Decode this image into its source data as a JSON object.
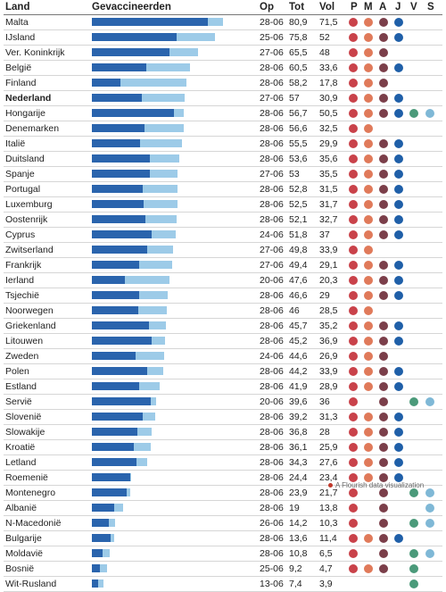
{
  "headers": {
    "land": "Land",
    "gevaccineerden": "Gevaccineerden",
    "op": "Op",
    "tot": "Tot",
    "vol": "Vol",
    "p": "P",
    "m": "M",
    "a": "A",
    "j": "J",
    "v": "V",
    "s": "S"
  },
  "colors": {
    "P": "#c9424a",
    "M": "#e07a5a",
    "A": "#7b3f4a",
    "J": "#1f5fa8",
    "V": "#4b9a7a",
    "S": "#7fb8d6",
    "bar_tot": "#9dcbe8",
    "bar_vol": "#2a64ad"
  },
  "footer": "A Flourish data visualization",
  "chart_data": {
    "type": "table",
    "bar_max": 100,
    "columns": [
      "Land",
      "Gevaccineerden",
      "Op",
      "Tot",
      "Vol",
      "P",
      "M",
      "A",
      "J",
      "V",
      "S"
    ],
    "rows": [
      {
        "land": "Malta",
        "op": "28-06",
        "tot": "80,9",
        "vol": "71,5",
        "tv": 80.9,
        "vv": 71.5,
        "p": true,
        "m": true,
        "a": true,
        "j": true,
        "v": false,
        "s": false
      },
      {
        "land": "IJsland",
        "op": "25-06",
        "tot": "75,8",
        "vol": "52",
        "tv": 75.8,
        "vv": 52,
        "p": true,
        "m": true,
        "a": true,
        "j": true,
        "v": false,
        "s": false
      },
      {
        "land": "Ver. Koninkrijk",
        "op": "27-06",
        "tot": "65,5",
        "vol": "48",
        "tv": 65.5,
        "vv": 48,
        "p": true,
        "m": true,
        "a": true,
        "j": false,
        "v": false,
        "s": false
      },
      {
        "land": "België",
        "op": "28-06",
        "tot": "60,5",
        "vol": "33,6",
        "tv": 60.5,
        "vv": 33.6,
        "p": true,
        "m": true,
        "a": true,
        "j": true,
        "v": false,
        "s": false
      },
      {
        "land": "Finland",
        "op": "28-06",
        "tot": "58,2",
        "vol": "17,8",
        "tv": 58.2,
        "vv": 17.8,
        "p": true,
        "m": true,
        "a": true,
        "j": false,
        "v": false,
        "s": false
      },
      {
        "land": "Nederland",
        "op": "27-06",
        "tot": "57",
        "vol": "30,9",
        "tv": 57,
        "vv": 30.9,
        "p": true,
        "m": true,
        "a": true,
        "j": true,
        "v": false,
        "s": false,
        "bold": true
      },
      {
        "land": "Hongarije",
        "op": "28-06",
        "tot": "56,7",
        "vol": "50,5",
        "tv": 56.7,
        "vv": 50.5,
        "p": true,
        "m": true,
        "a": true,
        "j": true,
        "v": true,
        "s": true
      },
      {
        "land": "Denemarken",
        "op": "28-06",
        "tot": "56,6",
        "vol": "32,5",
        "tv": 56.6,
        "vv": 32.5,
        "p": true,
        "m": true,
        "a": false,
        "j": false,
        "v": false,
        "s": false
      },
      {
        "land": "Italië",
        "op": "28-06",
        "tot": "55,5",
        "vol": "29,9",
        "tv": 55.5,
        "vv": 29.9,
        "p": true,
        "m": true,
        "a": true,
        "j": true,
        "v": false,
        "s": false
      },
      {
        "land": "Duitsland",
        "op": "28-06",
        "tot": "53,6",
        "vol": "35,6",
        "tv": 53.6,
        "vv": 35.6,
        "p": true,
        "m": true,
        "a": true,
        "j": true,
        "v": false,
        "s": false
      },
      {
        "land": "Spanje",
        "op": "27-06",
        "tot": "53",
        "vol": "35,5",
        "tv": 53,
        "vv": 35.5,
        "p": true,
        "m": true,
        "a": true,
        "j": true,
        "v": false,
        "s": false
      },
      {
        "land": "Portugal",
        "op": "28-06",
        "tot": "52,8",
        "vol": "31,5",
        "tv": 52.8,
        "vv": 31.5,
        "p": true,
        "m": true,
        "a": true,
        "j": true,
        "v": false,
        "s": false
      },
      {
        "land": "Luxemburg",
        "op": "28-06",
        "tot": "52,5",
        "vol": "31,7",
        "tv": 52.5,
        "vv": 31.7,
        "p": true,
        "m": true,
        "a": true,
        "j": true,
        "v": false,
        "s": false
      },
      {
        "land": "Oostenrijk",
        "op": "28-06",
        "tot": "52,1",
        "vol": "32,7",
        "tv": 52.1,
        "vv": 32.7,
        "p": true,
        "m": true,
        "a": true,
        "j": true,
        "v": false,
        "s": false
      },
      {
        "land": "Cyprus",
        "op": "24-06",
        "tot": "51,8",
        "vol": "37",
        "tv": 51.8,
        "vv": 37,
        "p": true,
        "m": true,
        "a": true,
        "j": true,
        "v": false,
        "s": false
      },
      {
        "land": "Zwitserland",
        "op": "27-06",
        "tot": "49,8",
        "vol": "33,9",
        "tv": 49.8,
        "vv": 33.9,
        "p": true,
        "m": true,
        "a": false,
        "j": false,
        "v": false,
        "s": false
      },
      {
        "land": "Frankrijk",
        "op": "27-06",
        "tot": "49,4",
        "vol": "29,1",
        "tv": 49.4,
        "vv": 29.1,
        "p": true,
        "m": true,
        "a": true,
        "j": true,
        "v": false,
        "s": false
      },
      {
        "land": "Ierland",
        "op": "20-06",
        "tot": "47,6",
        "vol": "20,3",
        "tv": 47.6,
        "vv": 20.3,
        "p": true,
        "m": true,
        "a": true,
        "j": true,
        "v": false,
        "s": false
      },
      {
        "land": "Tsjechië",
        "op": "28-06",
        "tot": "46,6",
        "vol": "29",
        "tv": 46.6,
        "vv": 29,
        "p": true,
        "m": true,
        "a": true,
        "j": true,
        "v": false,
        "s": false
      },
      {
        "land": "Noorwegen",
        "op": "28-06",
        "tot": "46",
        "vol": "28,5",
        "tv": 46,
        "vv": 28.5,
        "p": true,
        "m": true,
        "a": false,
        "j": false,
        "v": false,
        "s": false
      },
      {
        "land": "Griekenland",
        "op": "28-06",
        "tot": "45,7",
        "vol": "35,2",
        "tv": 45.7,
        "vv": 35.2,
        "p": true,
        "m": true,
        "a": true,
        "j": true,
        "v": false,
        "s": false
      },
      {
        "land": "Litouwen",
        "op": "28-06",
        "tot": "45,2",
        "vol": "36,9",
        "tv": 45.2,
        "vv": 36.9,
        "p": true,
        "m": true,
        "a": true,
        "j": true,
        "v": false,
        "s": false
      },
      {
        "land": "Zweden",
        "op": "24-06",
        "tot": "44,6",
        "vol": "26,9",
        "tv": 44.6,
        "vv": 26.9,
        "p": true,
        "m": true,
        "a": true,
        "j": false,
        "v": false,
        "s": false
      },
      {
        "land": "Polen",
        "op": "28-06",
        "tot": "44,2",
        "vol": "33,9",
        "tv": 44.2,
        "vv": 33.9,
        "p": true,
        "m": true,
        "a": true,
        "j": true,
        "v": false,
        "s": false
      },
      {
        "land": "Estland",
        "op": "28-06",
        "tot": "41,9",
        "vol": "28,9",
        "tv": 41.9,
        "vv": 28.9,
        "p": true,
        "m": true,
        "a": true,
        "j": true,
        "v": false,
        "s": false
      },
      {
        "land": "Servië",
        "op": "20-06",
        "tot": "39,6",
        "vol": "36",
        "tv": 39.6,
        "vv": 36,
        "p": true,
        "m": false,
        "a": true,
        "j": false,
        "v": true,
        "s": true
      },
      {
        "land": "Slovenië",
        "op": "28-06",
        "tot": "39,2",
        "vol": "31,3",
        "tv": 39.2,
        "vv": 31.3,
        "p": true,
        "m": true,
        "a": true,
        "j": true,
        "v": false,
        "s": false
      },
      {
        "land": "Slowakije",
        "op": "28-06",
        "tot": "36,8",
        "vol": "28",
        "tv": 36.8,
        "vv": 28,
        "p": true,
        "m": true,
        "a": true,
        "j": true,
        "v": false,
        "s": false
      },
      {
        "land": "Kroatië",
        "op": "28-06",
        "tot": "36,1",
        "vol": "25,9",
        "tv": 36.1,
        "vv": 25.9,
        "p": true,
        "m": true,
        "a": true,
        "j": true,
        "v": false,
        "s": false
      },
      {
        "land": "Letland",
        "op": "28-06",
        "tot": "34,3",
        "vol": "27,6",
        "tv": 34.3,
        "vv": 27.6,
        "p": true,
        "m": true,
        "a": true,
        "j": true,
        "v": false,
        "s": false
      },
      {
        "land": "Roemenië",
        "op": "28-06",
        "tot": "24,4",
        "vol": "23,4",
        "tv": 24.4,
        "vv": 23.4,
        "p": true,
        "m": true,
        "a": true,
        "j": true,
        "v": false,
        "s": false
      },
      {
        "land": "Montenegro",
        "op": "28-06",
        "tot": "23,9",
        "vol": "21,7",
        "tv": 23.9,
        "vv": 21.7,
        "p": true,
        "m": false,
        "a": true,
        "j": false,
        "v": true,
        "s": true
      },
      {
        "land": "Albanië",
        "op": "28-06",
        "tot": "19",
        "vol": "13,8",
        "tv": 19,
        "vv": 13.8,
        "p": true,
        "m": false,
        "a": true,
        "j": false,
        "v": false,
        "s": true
      },
      {
        "land": "N-Macedonië",
        "op": "26-06",
        "tot": "14,2",
        "vol": "10,3",
        "tv": 14.2,
        "vv": 10.3,
        "p": true,
        "m": false,
        "a": true,
        "j": false,
        "v": true,
        "s": true
      },
      {
        "land": "Bulgarije",
        "op": "28-06",
        "tot": "13,6",
        "vol": "11,4",
        "tv": 13.6,
        "vv": 11.4,
        "p": true,
        "m": true,
        "a": true,
        "j": true,
        "v": false,
        "s": false
      },
      {
        "land": "Moldavië",
        "op": "28-06",
        "tot": "10,8",
        "vol": "6,5",
        "tv": 10.8,
        "vv": 6.5,
        "p": true,
        "m": false,
        "a": true,
        "j": false,
        "v": true,
        "s": true
      },
      {
        "land": "Bosnië",
        "op": "25-06",
        "tot": "9,2",
        "vol": "4,7",
        "tv": 9.2,
        "vv": 4.7,
        "p": true,
        "m": true,
        "a": true,
        "j": false,
        "v": true,
        "s": false
      },
      {
        "land": "Wit-Rusland",
        "op": "13-06",
        "tot": "7,4",
        "vol": "3,9",
        "tv": 7.4,
        "vv": 3.9,
        "p": false,
        "m": false,
        "a": false,
        "j": false,
        "v": true,
        "s": false
      }
    ]
  }
}
